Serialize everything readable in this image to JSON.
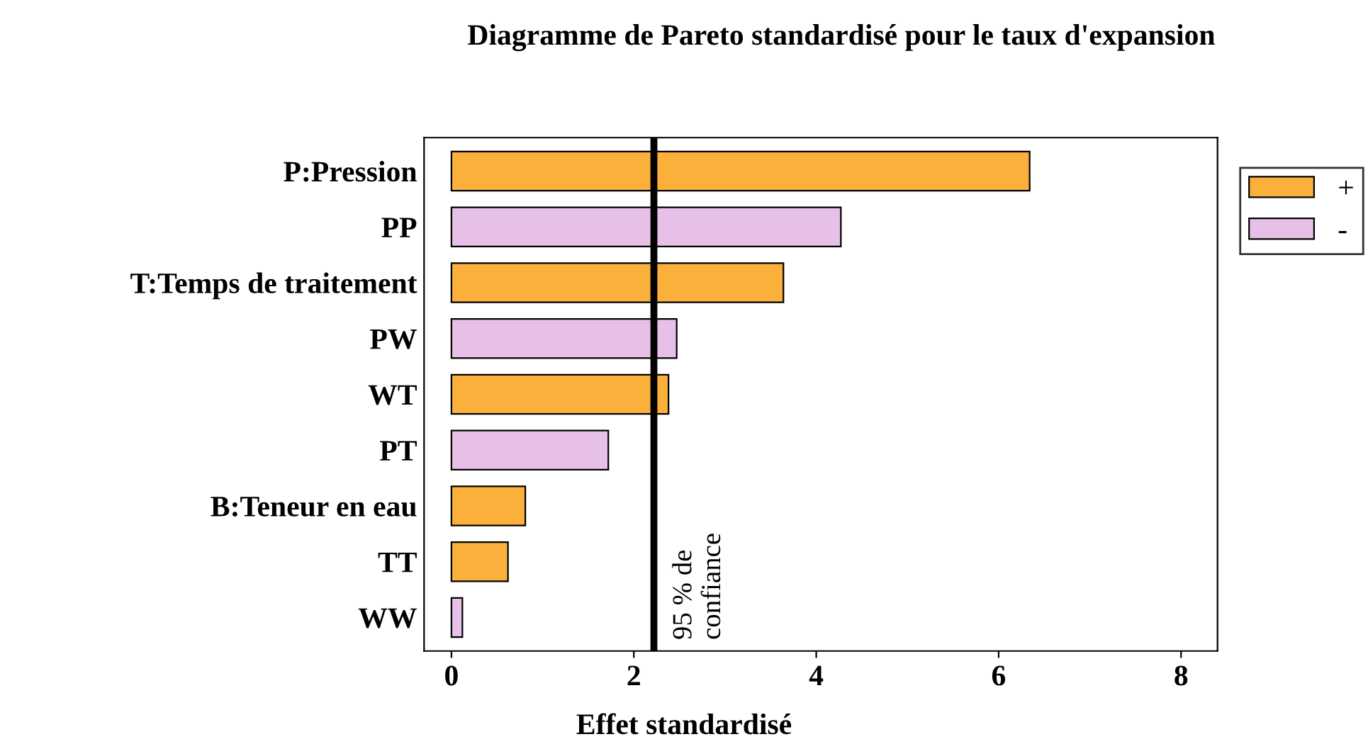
{
  "chart_data": {
    "type": "bar",
    "orientation": "horizontal",
    "title": "Diagramme de Pareto standardisé pour le taux d'expansion",
    "xlabel": "Effet standardisé",
    "categories": [
      "P:Pression",
      "PP",
      "T:Temps de traitement",
      "PW",
      "WT",
      "PT",
      "B:Teneur en eau",
      "TT",
      "WW"
    ],
    "series": [
      {
        "name": "+",
        "color": "#fbb03b",
        "values": [
          6.34,
          null,
          3.64,
          null,
          2.38,
          null,
          0.81,
          0.62,
          null
        ]
      },
      {
        "name": "-",
        "color": "#e6c0e6",
        "values": [
          null,
          4.27,
          null,
          2.47,
          null,
          1.72,
          null,
          null,
          0.12
        ]
      }
    ],
    "xlim": [
      -0.3,
      8.4
    ],
    "xticks": [
      0,
      2,
      4,
      6,
      8
    ],
    "grid": false,
    "legend": "top right",
    "ref_lines": [
      {
        "axis": "x",
        "value": 2.22,
        "label": "95 % de\nconfiance",
        "color": "#000000"
      }
    ]
  }
}
